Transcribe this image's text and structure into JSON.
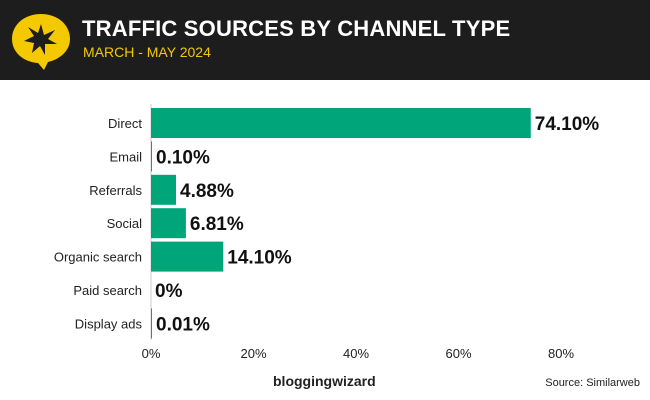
{
  "header": {
    "title": "TRAFFIC SOURCES BY CHANNEL TYPE",
    "subtitle": "MARCH - MAY 2024"
  },
  "footer": {
    "brand": "bloggingwizard",
    "source": "Source: Similarweb"
  },
  "colors": {
    "bar": "#00a67a",
    "header_bg": "#1d1d1d",
    "accent": "#f4c900"
  },
  "icons": {
    "logo": "star-speech-bubble-icon"
  },
  "chart_data": {
    "type": "bar",
    "orientation": "horizontal",
    "categories": [
      "Direct",
      "Email",
      "Referrals",
      "Social",
      "Organic search",
      "Paid search",
      "Display ads"
    ],
    "values": [
      74.1,
      0.1,
      4.88,
      6.81,
      14.1,
      0,
      0.01
    ],
    "value_labels": [
      "74.10%",
      "0.10%",
      "4.88%",
      "6.81%",
      "14.10%",
      "0%",
      "0.01%"
    ],
    "xlim": [
      0,
      80
    ],
    "xticks": [
      0,
      20,
      40,
      60,
      80
    ],
    "xtick_labels": [
      "0%",
      "20%",
      "40%",
      "60%",
      "80%"
    ],
    "grid": false,
    "legend": "none"
  }
}
